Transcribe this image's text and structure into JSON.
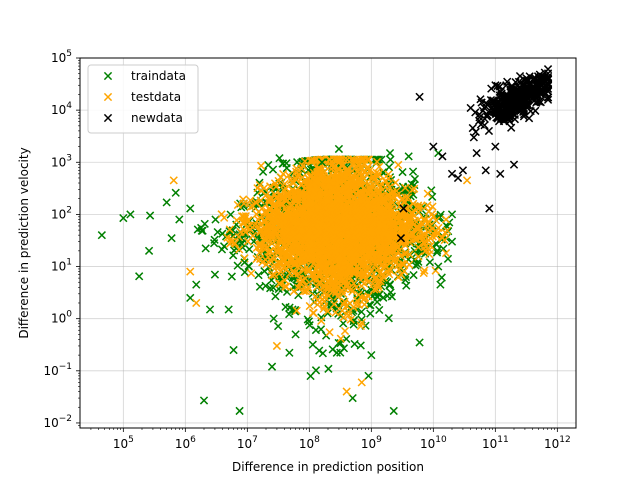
{
  "chart_data": {
    "type": "scatter",
    "title": "",
    "xlabel": "Difference in prediction position",
    "ylabel": "Difference in prediction velocity",
    "xscale": "log",
    "yscale": "log",
    "xlim": [
      20000,
      2000000000000
    ],
    "ylim": [
      0.008,
      100000
    ],
    "grid": true,
    "legend_position": "top-left",
    "x_ticks": [
      {
        "value": 100000,
        "base": "10",
        "exp": "5"
      },
      {
        "value": 1000000,
        "base": "10",
        "exp": "6"
      },
      {
        "value": 10000000,
        "base": "10",
        "exp": "7"
      },
      {
        "value": 100000000,
        "base": "10",
        "exp": "8"
      },
      {
        "value": 1000000000,
        "base": "10",
        "exp": "9"
      },
      {
        "value": 10000000000,
        "base": "10",
        "exp": "10"
      },
      {
        "value": 100000000000,
        "base": "10",
        "exp": "11"
      },
      {
        "value": 1000000000000,
        "base": "10",
        "exp": "12"
      }
    ],
    "y_ticks": [
      {
        "value": 0.01,
        "base": "10",
        "exp": "−2"
      },
      {
        "value": 0.1,
        "base": "10",
        "exp": "−1"
      },
      {
        "value": 1,
        "base": "10",
        "exp": "0"
      },
      {
        "value": 10,
        "base": "10",
        "exp": "1"
      },
      {
        "value": 100,
        "base": "10",
        "exp": "2"
      },
      {
        "value": 1000,
        "base": "10",
        "exp": "3"
      },
      {
        "value": 10000,
        "base": "10",
        "exp": "4"
      },
      {
        "value": 100000,
        "base": "10",
        "exp": "5"
      }
    ],
    "series": [
      {
        "name": "traindata",
        "color": "#008000",
        "marker": "x",
        "points": [
          [
            45000,
            40
          ],
          [
            100000,
            85
          ],
          [
            130000,
            100
          ],
          [
            180000,
            6.5
          ],
          [
            270000,
            95
          ],
          [
            260000,
            20
          ],
          [
            500000,
            170
          ],
          [
            600000,
            35
          ],
          [
            700000,
            260
          ],
          [
            800000,
            80
          ],
          [
            1200000,
            130
          ],
          [
            1200000,
            2.5
          ],
          [
            1500000,
            4.5
          ],
          [
            1800000,
            55
          ],
          [
            2000000,
            0.027
          ],
          [
            2500000,
            1.5
          ],
          [
            3000000,
            7
          ],
          [
            6000000,
            0.25
          ],
          [
            7500000,
            0.017
          ],
          [
            9000000,
            12
          ],
          [
            25000000,
            0.12
          ],
          [
            33000000,
            1200
          ],
          [
            60000000,
            0.5
          ],
          [
            160000000,
            1000
          ],
          [
            300000000,
            1800
          ],
          [
            500000000,
            0.03
          ],
          [
            900000000,
            0.08
          ],
          [
            2300000000,
            0.017
          ],
          [
            6000000000,
            0.35
          ],
          [
            13000000000,
            4.5
          ],
          [
            20000000000,
            30
          ],
          [
            4000000000,
            1300
          ],
          [
            2000000000,
            1500
          ],
          [
            12000000000,
            1500
          ],
          [
            20000000000,
            100
          ],
          [
            12000000000,
            10
          ],
          [
            1000000000,
            0.2
          ],
          [
            5000000,
            1.5
          ]
        ]
      },
      {
        "name": "testdata",
        "color": "#ffa500",
        "marker": "x",
        "points": [
          [
            650000,
            450
          ],
          [
            1500000,
            2
          ],
          [
            30000000,
            0.3
          ],
          [
            400000000,
            0.04
          ],
          [
            700000000,
            0.06
          ],
          [
            7000000000,
            7.5
          ],
          [
            16000000000,
            80
          ],
          [
            35000000000,
            450
          ],
          [
            3000000000,
            150
          ],
          [
            1200000,
            8
          ]
        ]
      },
      {
        "name": "newdata",
        "color": "#000000",
        "marker": "x",
        "points": [
          [
            3000000000,
            35
          ],
          [
            3300000000,
            130
          ],
          [
            6000000000,
            18000
          ],
          [
            10000000000,
            2000
          ],
          [
            14000000000,
            1300
          ],
          [
            20000000000,
            600
          ],
          [
            25000000000,
            500
          ],
          [
            30000000000,
            700
          ],
          [
            45000000000,
            3000
          ],
          [
            50000000000,
            1500
          ],
          [
            70000000000,
            700
          ],
          [
            80000000000,
            130
          ],
          [
            100000000000,
            2000
          ],
          [
            120000000000,
            600
          ],
          [
            200000000000,
            900
          ],
          [
            350000000000,
            7000
          ],
          [
            40000000000,
            11000
          ],
          [
            60000000000,
            14000
          ],
          [
            150000000000,
            30000
          ],
          [
            250000000000,
            45000
          ],
          [
            420000000000,
            40000
          ],
          [
            550000000000,
            22000
          ],
          [
            650000000000,
            35000
          ]
        ]
      }
    ]
  }
}
